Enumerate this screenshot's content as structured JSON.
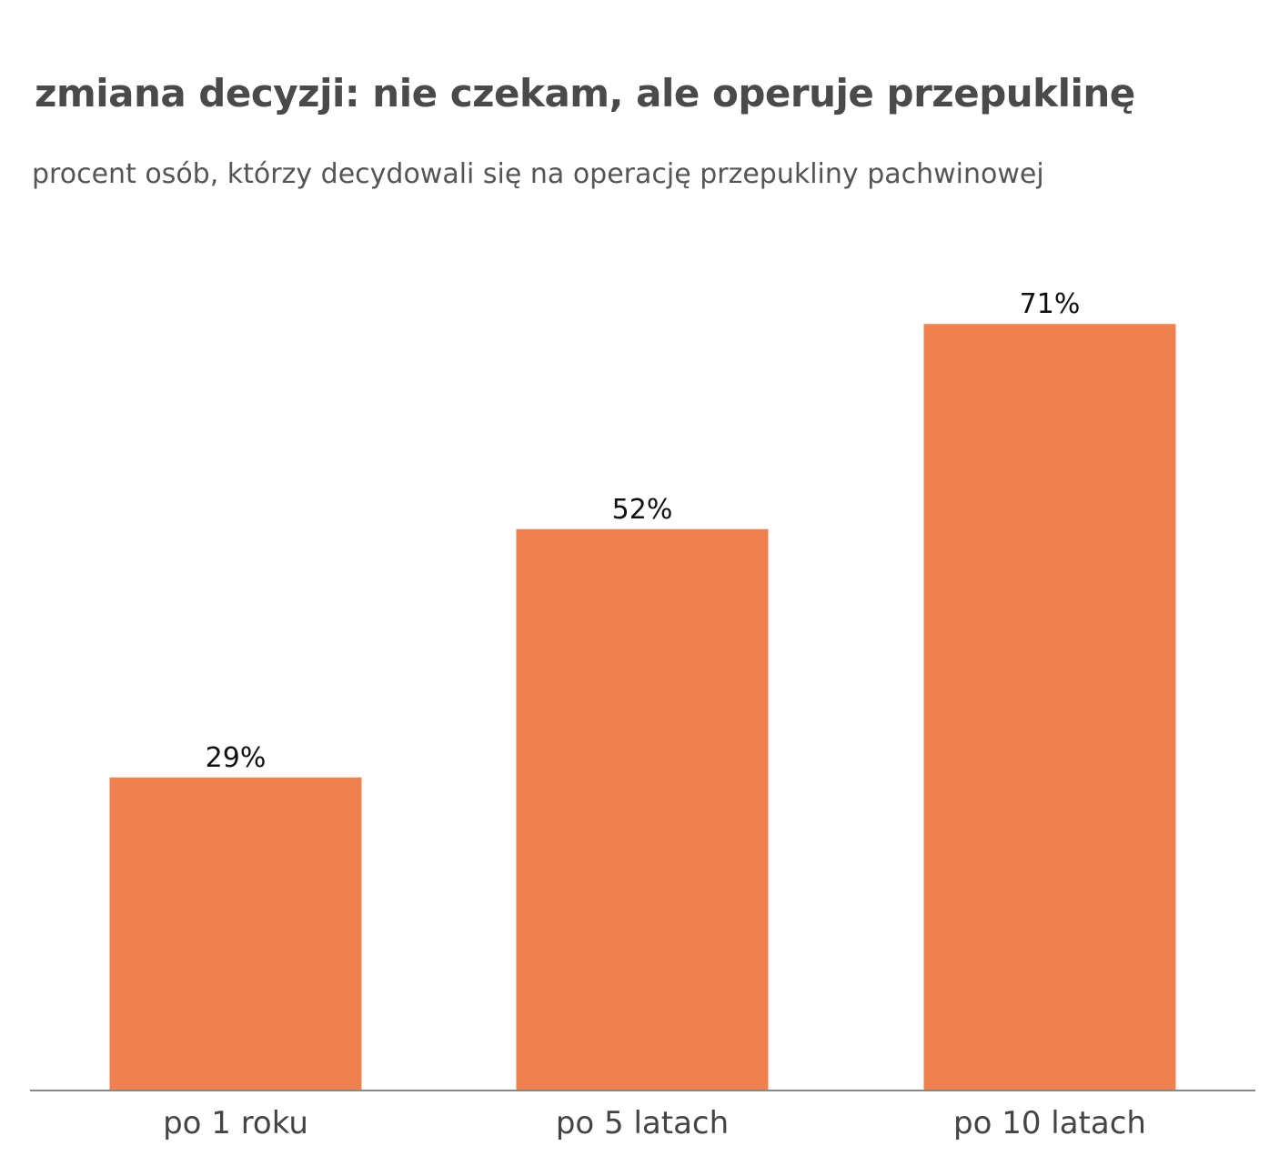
{
  "chart_data": {
    "type": "bar",
    "title": "zmiana decyzji: nie czekam, ale operuje przepuklinę",
    "subtitle": "procent osób, którzy decydowali się na operację przepukliny pachwinowej",
    "categories": [
      "po 1 roku",
      "po 5 latach",
      "po 10 latach"
    ],
    "values": [
      29,
      52,
      71
    ],
    "value_labels": [
      "29%",
      "52%",
      "71%"
    ],
    "xlabel": "",
    "ylabel": "",
    "ylim": [
      0,
      100
    ],
    "grid": false,
    "bar_color": "#ee814f",
    "axis_color": "#888888"
  }
}
